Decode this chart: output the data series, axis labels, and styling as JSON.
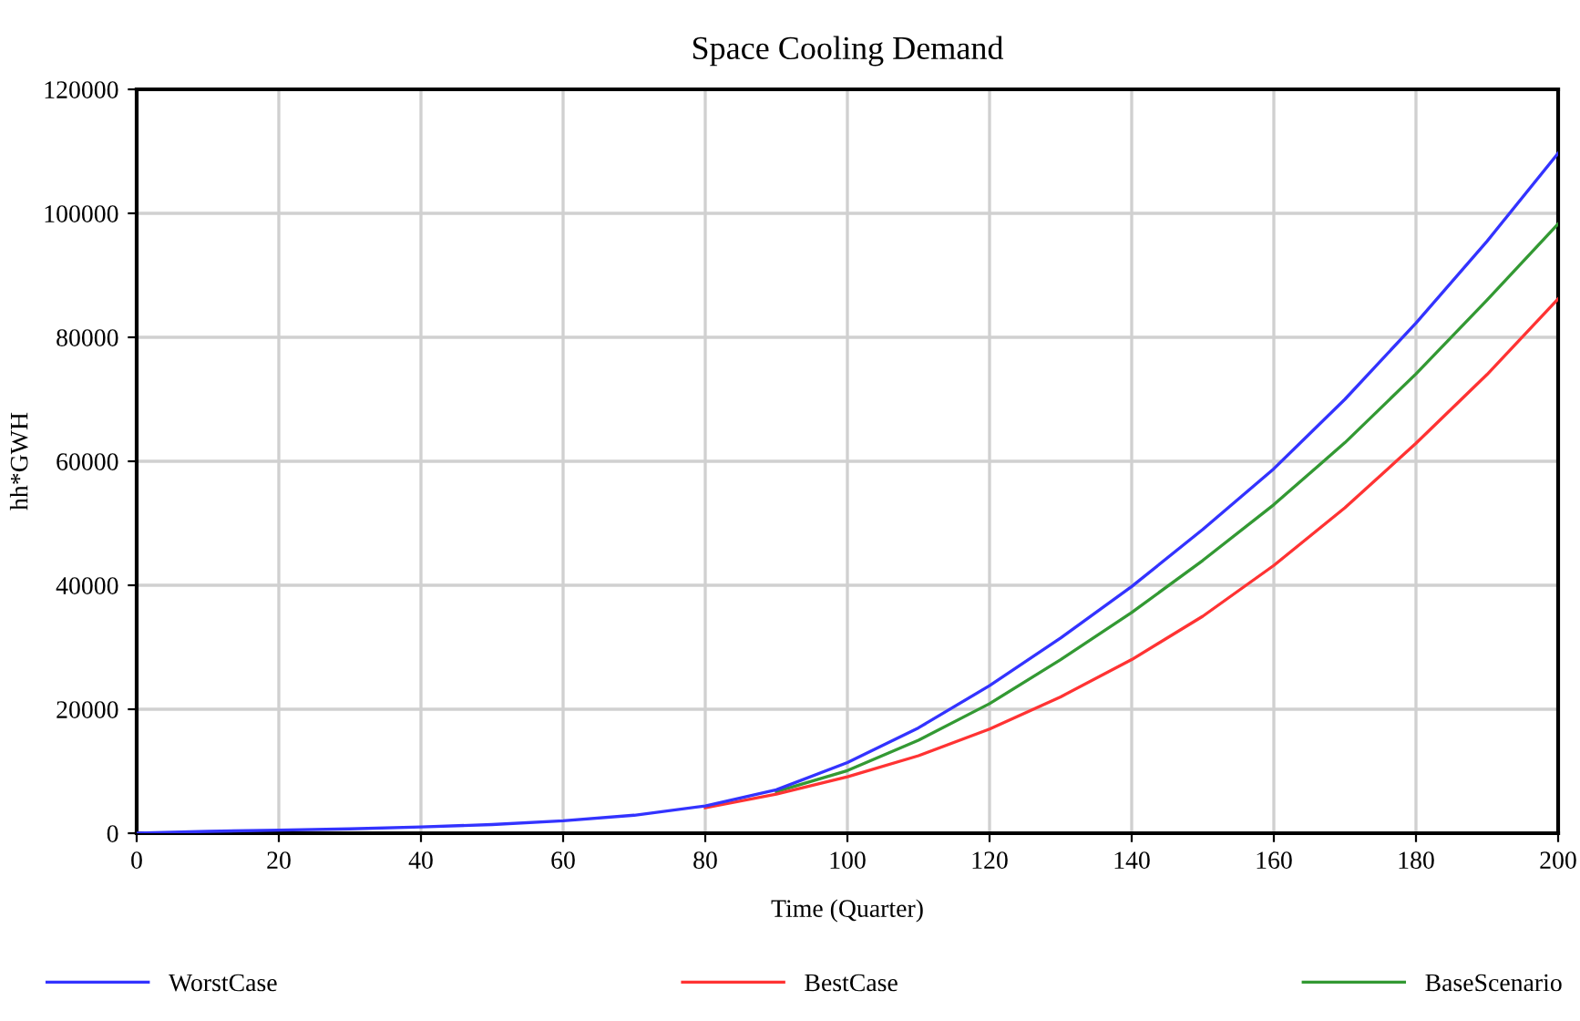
{
  "chart_data": {
    "type": "line",
    "title": "Space Cooling Demand",
    "xlabel": "Time (Quarter)",
    "ylabel": "hh*GWH",
    "x": [
      0,
      10,
      20,
      30,
      40,
      50,
      60,
      70,
      80,
      90,
      100,
      110,
      120,
      130,
      140,
      150,
      160,
      170,
      180,
      190,
      200
    ],
    "series": [
      {
        "name": "WorstCase",
        "color": "#3333ff",
        "values": [
          0,
          300,
          500,
          700,
          1000,
          1400,
          2000,
          2900,
          4400,
          7000,
          11400,
          17000,
          23800,
          31500,
          39800,
          49000,
          58800,
          70000,
          82300,
          95500,
          109700
        ]
      },
      {
        "name": "BestCase",
        "color": "#ff3333",
        "values": [
          null,
          null,
          null,
          null,
          null,
          null,
          null,
          null,
          4100,
          6300,
          9100,
          12500,
          16800,
          22000,
          28000,
          35000,
          43200,
          52500,
          62900,
          74000,
          86200
        ]
      },
      {
        "name": "BaseScenario",
        "color": "#339933",
        "values": [
          null,
          null,
          null,
          null,
          null,
          null,
          null,
          null,
          null,
          6700,
          10100,
          15000,
          20900,
          28000,
          35600,
          44000,
          53000,
          63000,
          74100,
          86000,
          98300
        ]
      }
    ],
    "xlim": [
      0,
      200
    ],
    "xticks": [
      0,
      20,
      40,
      60,
      80,
      100,
      120,
      140,
      160,
      180,
      200
    ],
    "ylim": [
      0,
      120000
    ],
    "yticks": [
      0,
      20000,
      40000,
      60000,
      80000,
      100000,
      120000
    ],
    "grid": true,
    "legend": "bottom",
    "marker": "none",
    "line_style": "solid"
  }
}
